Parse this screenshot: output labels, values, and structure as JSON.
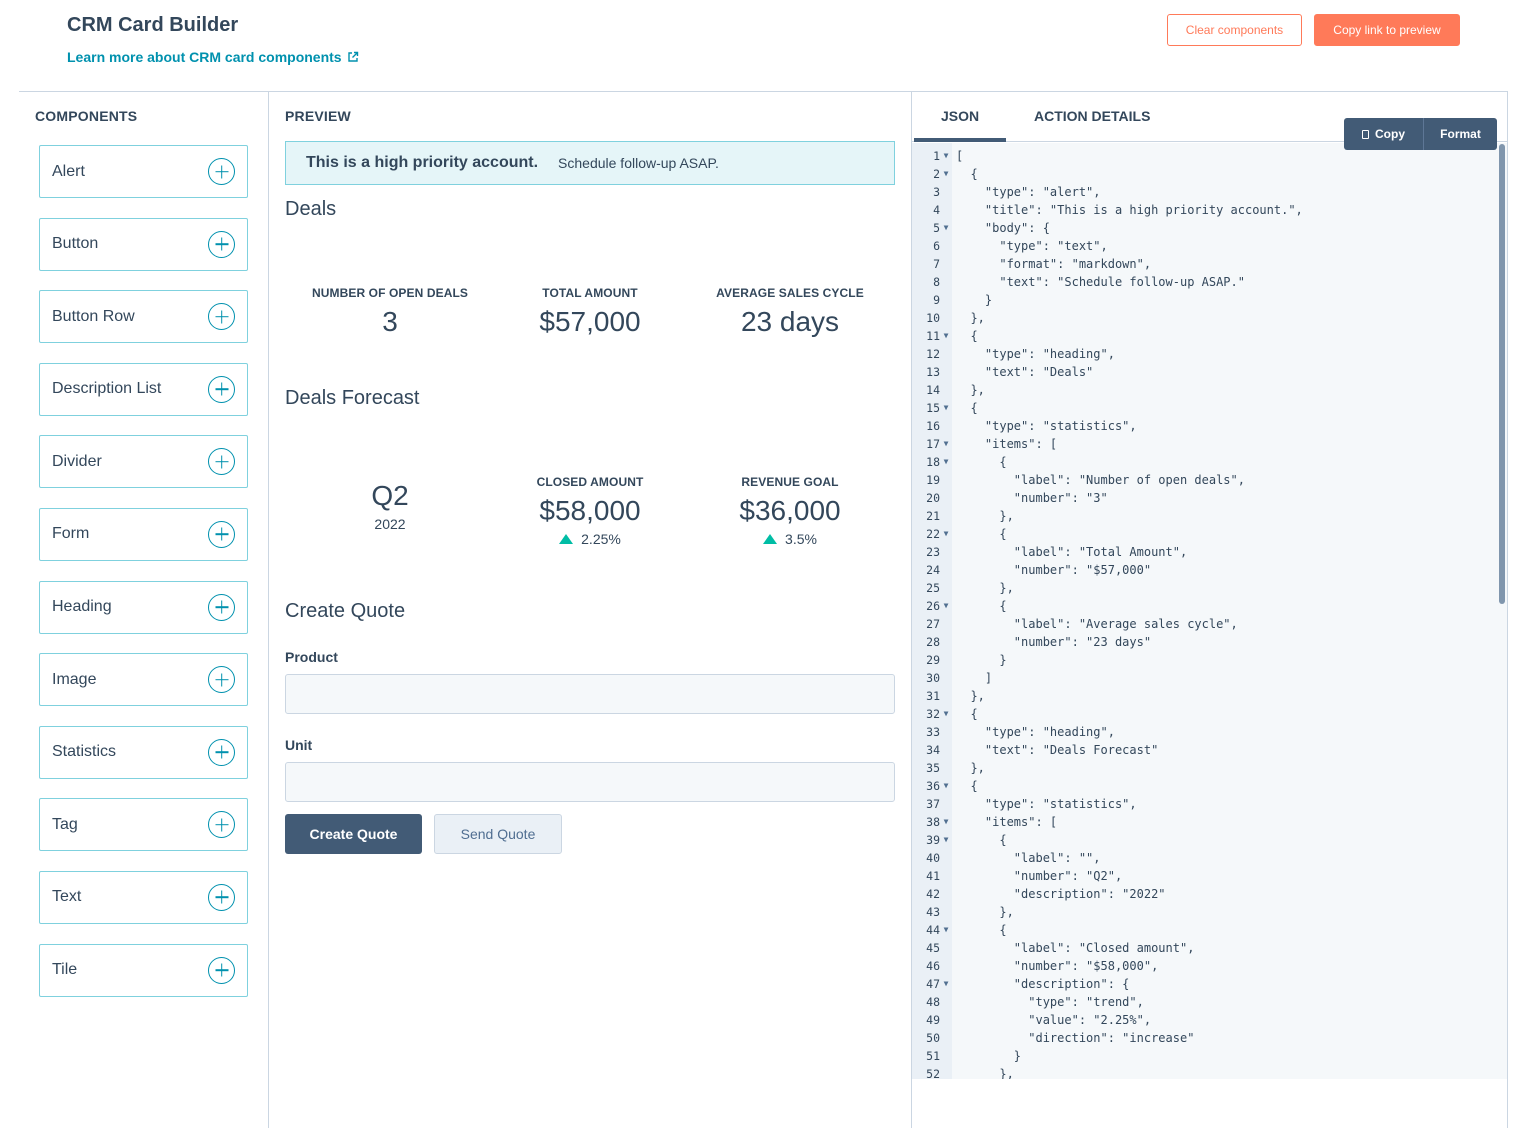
{
  "header": {
    "title": "CRM Card Builder",
    "learn_link": "Learn more about CRM card components",
    "clear_button": "Clear components",
    "copy_link_button": "Copy link to preview"
  },
  "components_panel": {
    "heading": "COMPONENTS",
    "items": [
      "Alert",
      "Button",
      "Button Row",
      "Description List",
      "Divider",
      "Form",
      "Heading",
      "Image",
      "Statistics",
      "Tag",
      "Text",
      "Tile"
    ]
  },
  "preview": {
    "heading": "PREVIEW",
    "alert": {
      "title": "This is a high priority account.",
      "body": "Schedule follow-up ASAP."
    },
    "deals_heading": "Deals",
    "deals_stats": [
      {
        "label": "Number of open deals",
        "number": "3"
      },
      {
        "label": "Total Amount",
        "number": "$57,000"
      },
      {
        "label": "Average sales cycle",
        "number": "23 days"
      }
    ],
    "forecast_heading": "Deals Forecast",
    "forecast_stats": [
      {
        "label": "",
        "number": "Q2",
        "description": "2022"
      },
      {
        "label": "Closed amount",
        "number": "$58,000",
        "trend": "2.25%"
      },
      {
        "label": "Revenue goal",
        "number": "$36,000",
        "trend": "3.5%"
      }
    ],
    "quote_heading": "Create Quote",
    "product_label": "Product",
    "unit_label": "Unit",
    "create_button": "Create Quote",
    "send_button": "Send Quote"
  },
  "json_panel": {
    "tabs": [
      "JSON",
      "ACTION DETAILS"
    ],
    "copy_button": "Copy",
    "format_button": "Format",
    "code_lines": [
      "[",
      "  {",
      "    \"type\": \"alert\",",
      "    \"title\": \"This is a high priority account.\",",
      "    \"body\": {",
      "      \"type\": \"text\",",
      "      \"format\": \"markdown\",",
      "      \"text\": \"Schedule follow-up ASAP.\"",
      "    }",
      "  },",
      "  {",
      "    \"type\": \"heading\",",
      "    \"text\": \"Deals\"",
      "  },",
      "  {",
      "    \"type\": \"statistics\",",
      "    \"items\": [",
      "      {",
      "        \"label\": \"Number of open deals\",",
      "        \"number\": \"3\"",
      "      },",
      "      {",
      "        \"label\": \"Total Amount\",",
      "        \"number\": \"$57,000\"",
      "      },",
      "      {",
      "        \"label\": \"Average sales cycle\",",
      "        \"number\": \"23 days\"",
      "      }",
      "    ]",
      "  },",
      "  {",
      "    \"type\": \"heading\",",
      "    \"text\": \"Deals Forecast\"",
      "  },",
      "  {",
      "    \"type\": \"statistics\",",
      "    \"items\": [",
      "      {",
      "        \"label\": \"\",",
      "        \"number\": \"Q2\",",
      "        \"description\": \"2022\"",
      "      },",
      "      {",
      "        \"label\": \"Closed amount\",",
      "        \"number\": \"$58,000\",",
      "        \"description\": {",
      "          \"type\": \"trend\",",
      "          \"value\": \"2.25%\",",
      "          \"direction\": \"increase\"",
      "        }",
      "      },"
    ],
    "fold_lines": [
      1,
      2,
      5,
      11,
      15,
      17,
      18,
      22,
      26,
      32,
      36,
      38,
      39,
      44,
      47
    ]
  }
}
